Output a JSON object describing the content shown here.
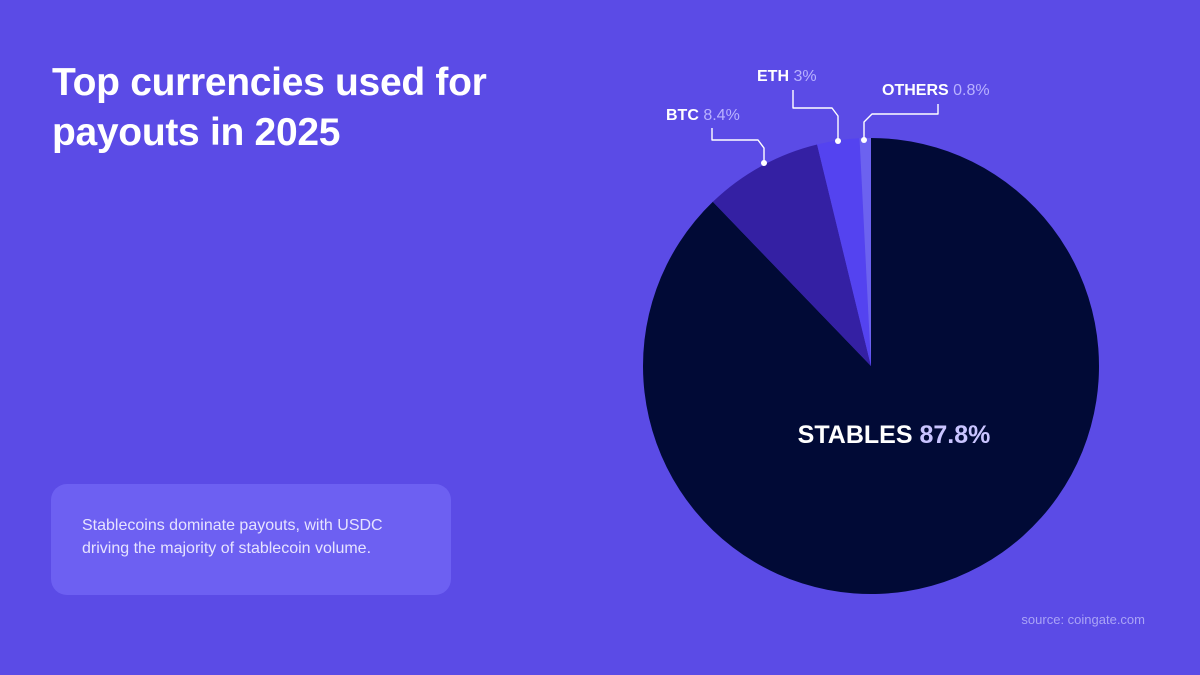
{
  "title": "Top currencies used for payouts in 2025",
  "note": "Stablecoins dominate payouts, with USDC driving the majority of stablecoin volume.",
  "source": "source: coingate.com",
  "chart_data": {
    "type": "pie",
    "slices": [
      {
        "name": "STABLES",
        "value": 87.8,
        "label_value": "87.8%",
        "color": "#010a36"
      },
      {
        "name": "BTC",
        "value": 8.4,
        "label_value": "8.4%",
        "color": "#3420a3"
      },
      {
        "name": "ETH",
        "value": 3,
        "label_value": "3%",
        "color": "#5443f0"
      },
      {
        "name": "OTHERS",
        "value": 0.8,
        "label_value": "0.8%",
        "color": "#6c62f0"
      }
    ]
  }
}
